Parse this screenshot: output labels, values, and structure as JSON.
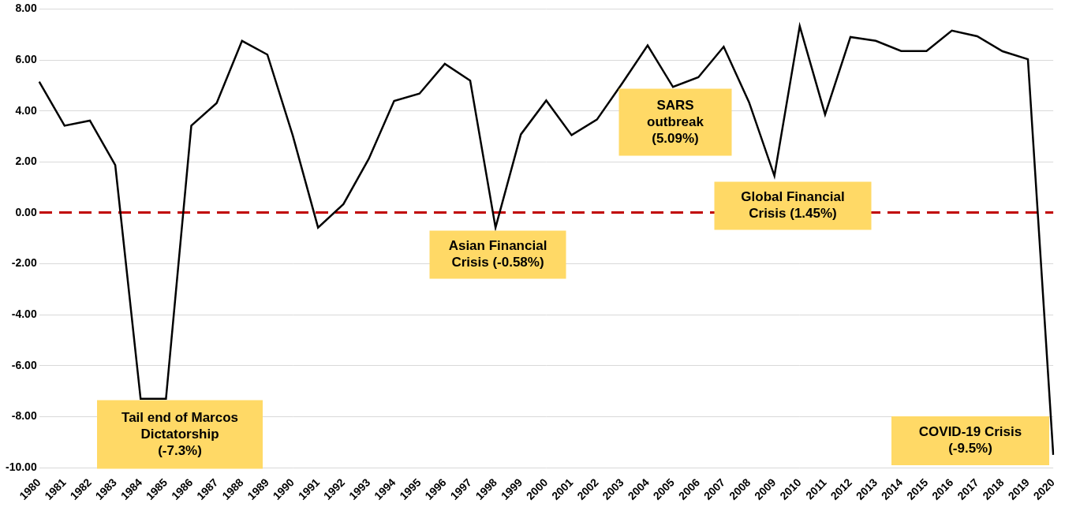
{
  "chart_data": {
    "type": "line",
    "categories": [
      "1980",
      "1981",
      "1982",
      "1983",
      "1984",
      "1985",
      "1986",
      "1987",
      "1988",
      "1989",
      "1990",
      "1991",
      "1992",
      "1993",
      "1994",
      "1995",
      "1996",
      "1997",
      "1998",
      "1999",
      "2000",
      "2001",
      "2002",
      "2003",
      "2004",
      "2005",
      "2006",
      "2007",
      "2008",
      "2009",
      "2010",
      "2011",
      "2012",
      "2013",
      "2014",
      "2015",
      "2016",
      "2017",
      "2018",
      "2019",
      "2020"
    ],
    "values": [
      5.15,
      3.42,
      3.62,
      1.87,
      -7.3,
      -7.3,
      3.42,
      4.31,
      6.75,
      6.21,
      3.04,
      -0.58,
      0.34,
      2.12,
      4.39,
      4.68,
      5.85,
      5.19,
      -0.58,
      3.08,
      4.41,
      3.05,
      3.66,
      5.09,
      6.57,
      4.94,
      5.32,
      6.52,
      4.34,
      1.45,
      7.33,
      3.86,
      6.9,
      6.75,
      6.35,
      6.35,
      7.15,
      6.93,
      6.34,
      6.03,
      -9.5
    ],
    "color": "#000000",
    "ylim": [
      -10,
      8
    ],
    "yticks": [
      {
        "value": -10,
        "label": "-10.00"
      },
      {
        "value": -8,
        "label": "-8.00"
      },
      {
        "value": -6,
        "label": "-6.00"
      },
      {
        "value": -4,
        "label": "-4.00"
      },
      {
        "value": -2,
        "label": "-2.00"
      },
      {
        "value": 0,
        "label": "0.00"
      },
      {
        "value": 2,
        "label": "2.00"
      },
      {
        "value": 4,
        "label": "4.00"
      },
      {
        "value": 6,
        "label": "6.00"
      },
      {
        "value": 8,
        "label": "8.00"
      }
    ],
    "grid": true,
    "annotations": [
      {
        "text": [
          "Tail end of Marcos",
          "Dictatorship",
          "(-7.3%)"
        ],
        "category": "1984"
      },
      {
        "text": [
          "Asian Financial",
          "Crisis (-0.58%)"
        ],
        "category": "1998"
      },
      {
        "text": [
          "SARS",
          "outbreak",
          "(5.09%)"
        ],
        "category": "2003"
      },
      {
        "text": [
          "Global Financial",
          "Crisis (1.45%)"
        ],
        "category": "2009"
      },
      {
        "text": [
          "COVID-19 Crisis",
          "(-9.5%)"
        ],
        "category": "2020"
      }
    ]
  }
}
